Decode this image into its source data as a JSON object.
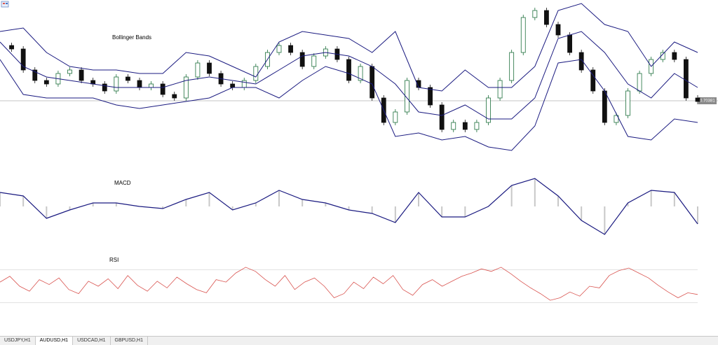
{
  "tabs": [
    {
      "label": "USDJPY,H1",
      "active": false
    },
    {
      "label": "AUDUSD,H1",
      "active": true
    },
    {
      "label": "USDCAD,H1",
      "active": false
    },
    {
      "label": "GBPUSD,H1",
      "active": false
    }
  ],
  "chart_data": [
    {
      "type": "candlestick",
      "title": "Bollinger Bands",
      "ylim": [
        0.69521,
        0.71821
      ],
      "current_price": 0.70381,
      "up_color": "#1b6e3a",
      "down_color": "#111111",
      "close": [
        0.71171,
        0.71121,
        0.70821,
        0.70671,
        0.70621,
        0.70771,
        0.70821,
        0.70671,
        0.70621,
        0.70521,
        0.70721,
        0.70671,
        0.70571,
        0.70621,
        0.70471,
        0.70421,
        0.70721,
        0.70921,
        0.70771,
        0.70621,
        0.70571,
        0.70671,
        0.70871,
        0.71071,
        0.71171,
        0.71071,
        0.70871,
        0.71021,
        0.71121,
        0.70971,
        0.70671,
        0.70871,
        0.70421,
        0.70071,
        0.70221,
        0.70671,
        0.70571,
        0.70321,
        0.69971,
        0.70071,
        0.69971,
        0.70071,
        0.70421,
        0.70671,
        0.71071,
        0.71571,
        0.71671,
        0.71471,
        0.71321,
        0.71071,
        0.70821,
        0.70521,
        0.70071,
        0.70171,
        0.70521,
        0.70771,
        0.70971,
        0.71071,
        0.70971,
        0.70421,
        0.70371
      ],
      "series": [
        {
          "color": "#1a1a80",
          "values": [
            0.71371,
            0.71421,
            0.71071,
            0.70871,
            0.70821,
            0.70821,
            0.70771,
            0.70771,
            0.71071,
            0.71021,
            0.70871,
            0.70721,
            0.71221,
            0.71371,
            0.71321,
            0.71271,
            0.71071,
            0.71371,
            0.70571,
            0.70521,
            0.70821,
            0.70571,
            0.70571,
            0.70871,
            0.71671,
            0.71771,
            0.71471,
            0.71371,
            0.70871,
            0.71221,
            0.71071
          ]
        },
        {
          "color": "#1a1a80",
          "values": [
            0.71221,
            0.70871,
            0.70721,
            0.70671,
            0.70621,
            0.70571,
            0.70571,
            0.70571,
            0.70671,
            0.70721,
            0.70671,
            0.70621,
            0.70821,
            0.71021,
            0.71071,
            0.71021,
            0.70871,
            0.70621,
            0.70221,
            0.70171,
            0.70321,
            0.70121,
            0.70121,
            0.70421,
            0.71271,
            0.71371,
            0.71071,
            0.70621,
            0.70421,
            0.70771,
            0.70571
          ]
        },
        {
          "color": "#1a1a80",
          "values": [
            0.70971,
            0.70471,
            0.70421,
            0.70421,
            0.70421,
            0.70321,
            0.70271,
            0.70321,
            0.70371,
            0.70421,
            0.70571,
            0.70571,
            0.70421,
            0.70671,
            0.70871,
            0.70771,
            0.70621,
            0.69871,
            0.69921,
            0.69821,
            0.69871,
            0.69721,
            0.69671,
            0.70021,
            0.70921,
            0.70971,
            0.70521,
            0.69871,
            0.69821,
            0.70121,
            0.70071
          ]
        }
      ]
    },
    {
      "type": "macd",
      "title": "MACD",
      "ylim": [
        -0.0005,
        0.0005
      ],
      "color": "#1a1a80",
      "bar_color": "#c8c8c8",
      "values": [
        0.0002,
        0.00015,
        -0.00017,
        -5e-05,
        5e-05,
        5e-05,
        0,
        -3e-05,
        0.0001,
        0.0002,
        -5e-05,
        5e-05,
        0.00023,
        0.0001,
        5e-05,
        -5e-05,
        -0.0001,
        -0.00023,
        0.0002,
        -0.00015,
        -0.00015,
        0,
        0.0003,
        0.0004,
        0.00015,
        -0.0002,
        -0.0004,
        5e-05,
        0.00023,
        0.0002,
        -0.00025
      ]
    },
    {
      "type": "line",
      "title": "RSI",
      "ylim": [
        0,
        100
      ],
      "levels": [
        70,
        30
      ],
      "color": "#d9534f",
      "values": [
        55,
        62,
        50,
        44,
        58,
        52,
        60,
        46,
        41,
        56,
        50,
        59,
        47,
        63,
        51,
        44,
        56,
        48,
        61,
        53,
        46,
        42,
        58,
        55,
        66,
        73,
        68,
        58,
        50,
        63,
        46,
        55,
        60,
        50,
        36,
        41,
        55,
        47,
        61,
        53,
        63,
        46,
        39,
        52,
        58,
        50,
        56,
        62,
        66,
        71,
        68,
        73,
        65,
        56,
        48,
        41,
        33,
        36,
        43,
        38,
        50,
        48,
        63,
        69,
        72,
        66,
        60,
        51,
        43,
        36,
        42,
        40
      ]
    }
  ]
}
